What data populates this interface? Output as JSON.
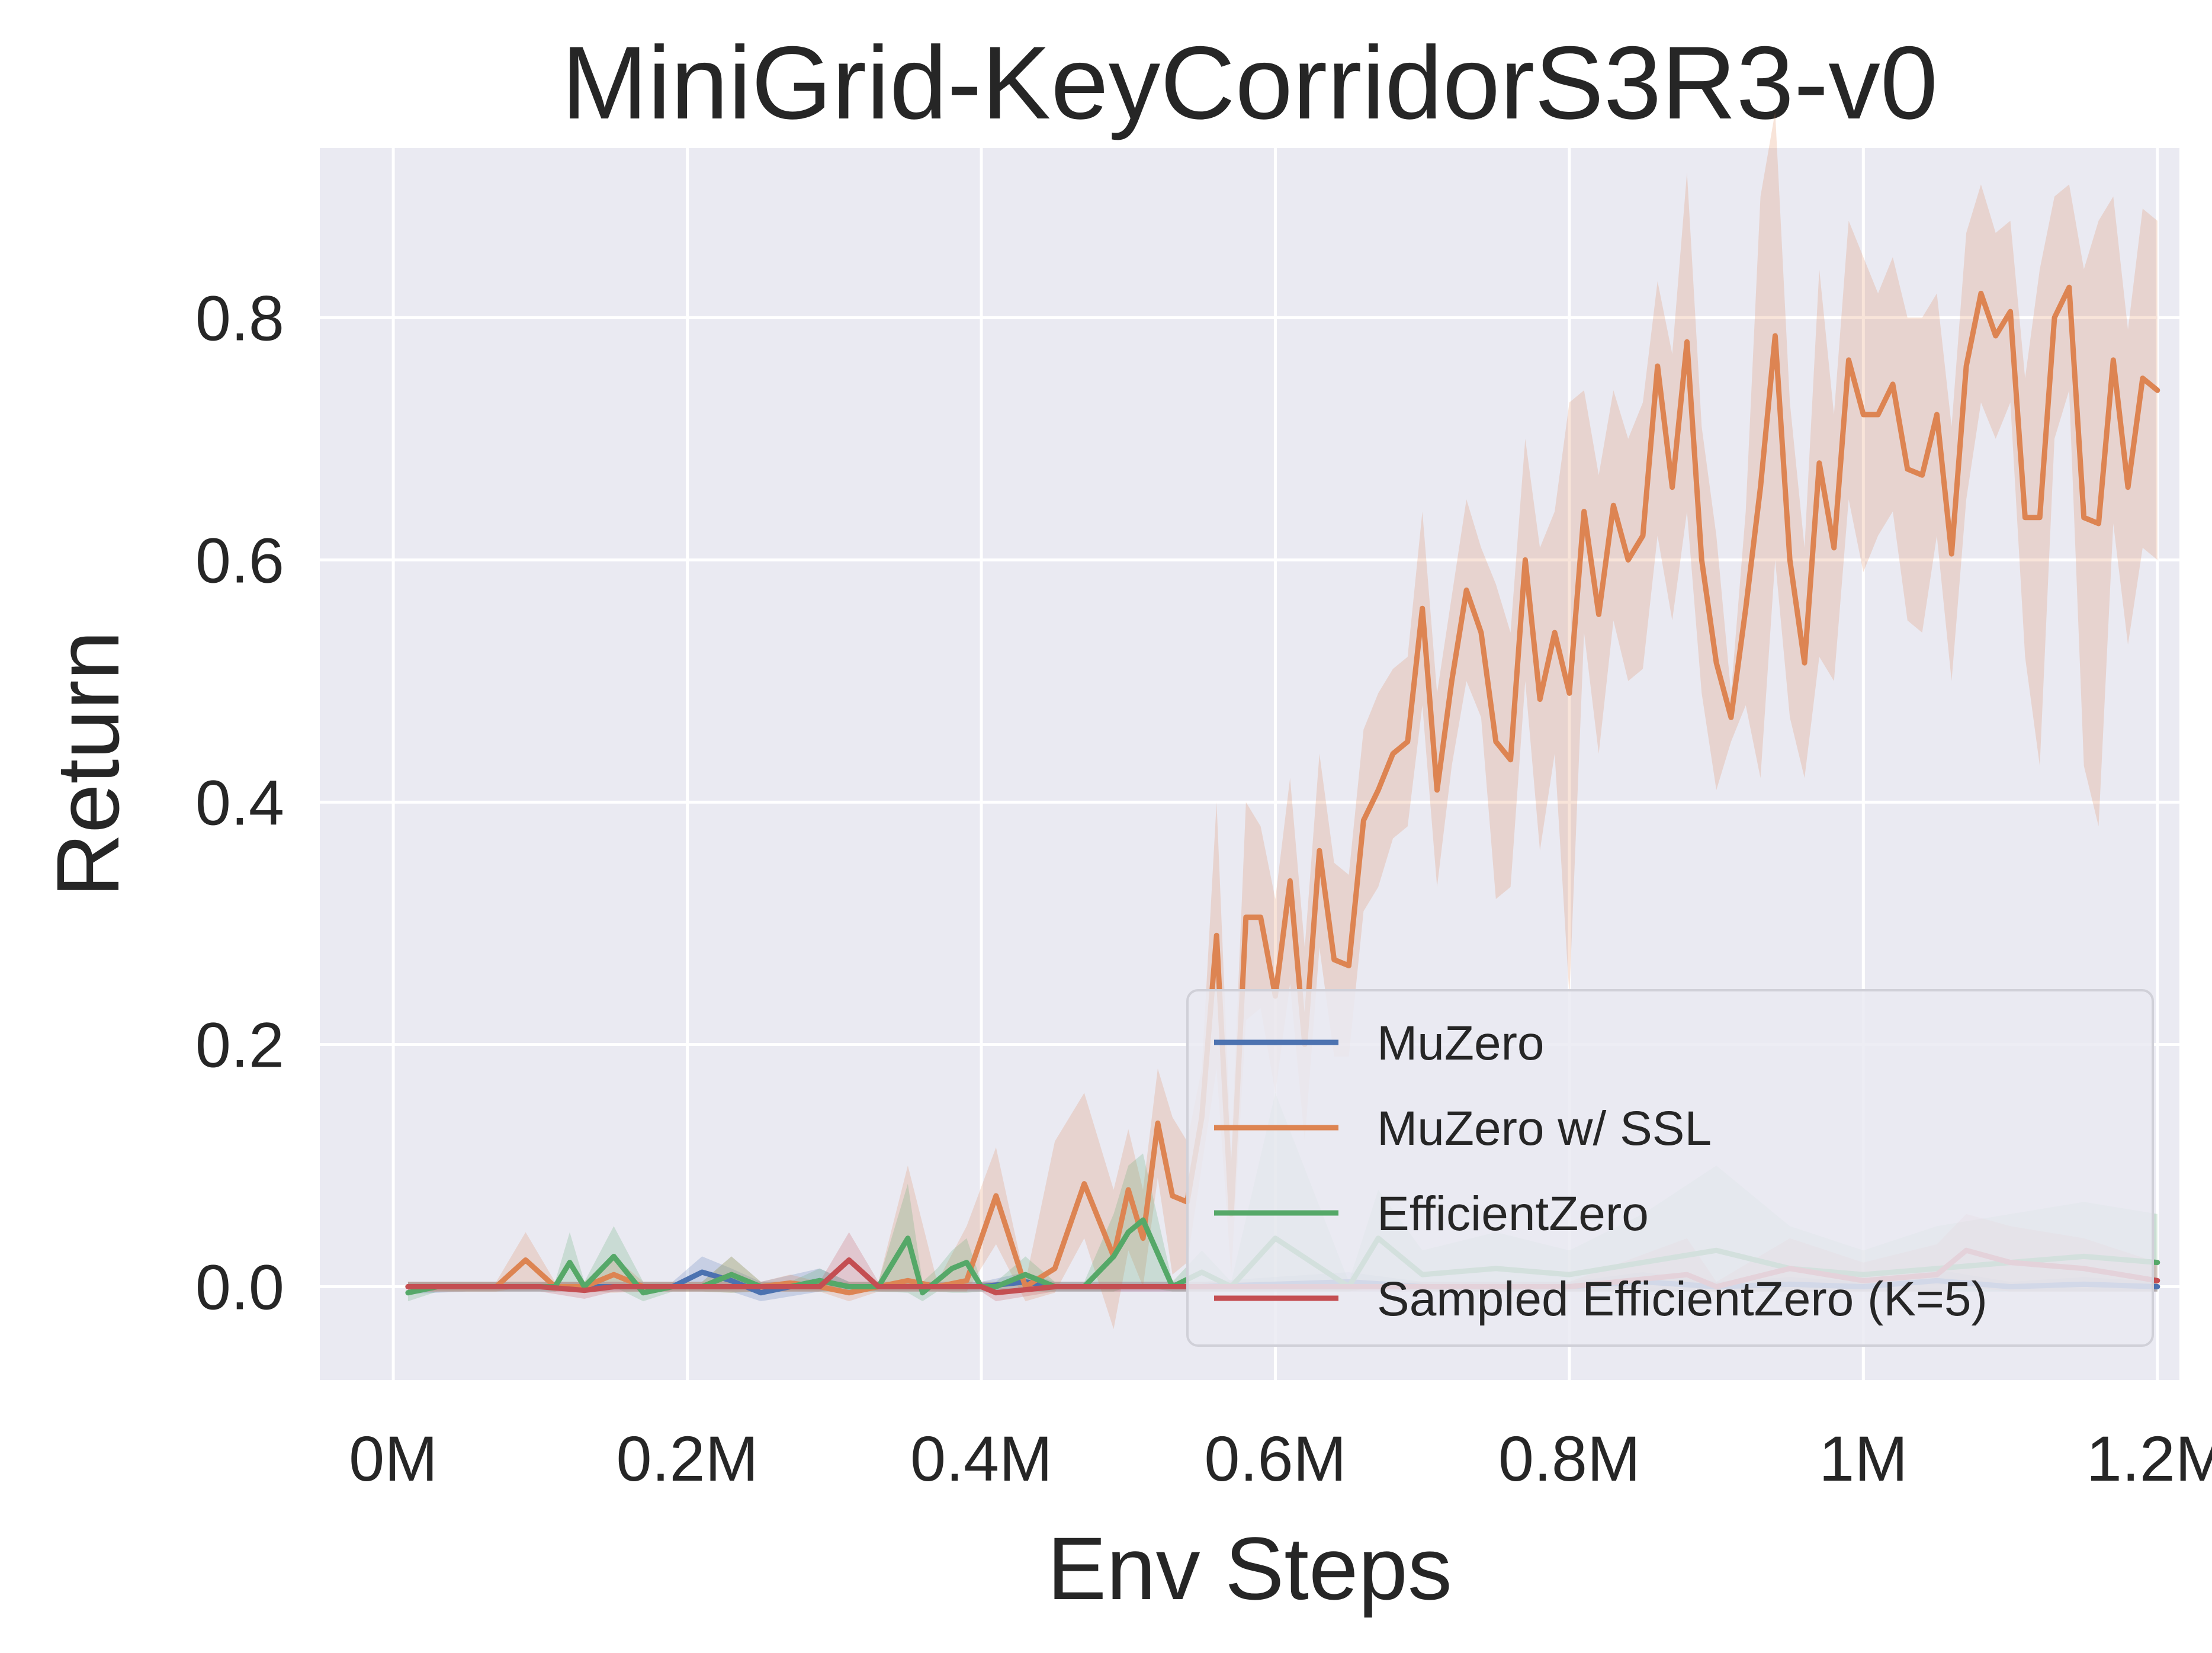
{
  "chart_data": {
    "type": "line",
    "title": "MiniGrid-KeyCorridorS3R3-v0",
    "xlabel": "Env Steps",
    "ylabel": "Return",
    "xlim": [
      -0.05,
      1.215
    ],
    "ylim": [
      -0.077,
      0.94
    ],
    "xticks": [
      0,
      0.2,
      0.4,
      0.6,
      0.8,
      1.0,
      1.2
    ],
    "xtick_labels": [
      "0M",
      "0.2M",
      "0.4M",
      "0.6M",
      "0.8M",
      "1M",
      "1.2M"
    ],
    "yticks": [
      0.0,
      0.2,
      0.4,
      0.6,
      0.8
    ],
    "ytick_labels": [
      "0.0",
      "0.2",
      "0.4",
      "0.6",
      "0.8"
    ],
    "grid": true,
    "legend_position": "lower-right",
    "background": "#eaeaf2",
    "series": [
      {
        "name": "MuZero",
        "color": "#4c72b0",
        "x": [
          0.01,
          0.05,
          0.1,
          0.15,
          0.19,
          0.21,
          0.23,
          0.25,
          0.29,
          0.31,
          0.35,
          0.4,
          0.43,
          0.45,
          0.5,
          0.55,
          0.65,
          0.7,
          0.75,
          0.8,
          0.85,
          0.9,
          0.95,
          1.0,
          1.05,
          1.1,
          1.15,
          1.2
        ],
        "y": [
          0,
          0,
          0,
          0,
          0,
          0.012,
          0.005,
          -0.005,
          0.005,
          0,
          0,
          0,
          0.004,
          0,
          0,
          0,
          0.004,
          0,
          0,
          0,
          0.004,
          0,
          0.002,
          0,
          0.005,
          0,
          0.002,
          0
        ],
        "lower": [
          -0.006,
          -0.004,
          -0.004,
          -0.004,
          -0.004,
          -0.004,
          -0.004,
          -0.012,
          -0.004,
          -0.004,
          -0.004,
          -0.004,
          -0.004,
          -0.004,
          -0.004,
          -0.004,
          -0.004,
          -0.004,
          -0.004,
          -0.004,
          -0.004,
          -0.004,
          -0.004,
          -0.004,
          -0.004,
          -0.004,
          -0.004,
          -0.004
        ],
        "upper": [
          0.004,
          0.004,
          0.004,
          0.004,
          0.004,
          0.025,
          0.015,
          0.004,
          0.015,
          0.004,
          0.004,
          0.004,
          0.012,
          0.004,
          0.004,
          0.004,
          0.012,
          0.004,
          0.004,
          0.004,
          0.012,
          0.004,
          0.008,
          0.004,
          0.014,
          0.004,
          0.008,
          0.004
        ]
      },
      {
        "name": "MuZero w/ SSL",
        "color": "#dd8452",
        "x": [
          0.01,
          0.03,
          0.05,
          0.07,
          0.09,
          0.11,
          0.13,
          0.15,
          0.17,
          0.19,
          0.21,
          0.23,
          0.25,
          0.27,
          0.29,
          0.31,
          0.33,
          0.35,
          0.37,
          0.39,
          0.41,
          0.43,
          0.45,
          0.47,
          0.49,
          0.5,
          0.51,
          0.52,
          0.53,
          0.54,
          0.55,
          0.56,
          0.57,
          0.58,
          0.59,
          0.6,
          0.61,
          0.62,
          0.63,
          0.64,
          0.65,
          0.66,
          0.67,
          0.68,
          0.69,
          0.7,
          0.71,
          0.72,
          0.73,
          0.74,
          0.75,
          0.76,
          0.77,
          0.78,
          0.79,
          0.8,
          0.81,
          0.82,
          0.83,
          0.84,
          0.85,
          0.86,
          0.87,
          0.88,
          0.89,
          0.9,
          0.91,
          0.92,
          0.93,
          0.94,
          0.95,
          0.96,
          0.97,
          0.98,
          0.99,
          1.0,
          1.01,
          1.02,
          1.03,
          1.04,
          1.05,
          1.06,
          1.07,
          1.08,
          1.09,
          1.1,
          1.11,
          1.12,
          1.13,
          1.14,
          1.15,
          1.16,
          1.17,
          1.18,
          1.19,
          1.2
        ],
        "y": [
          0,
          0,
          0,
          0,
          0.022,
          0,
          0,
          0.01,
          0,
          0,
          0,
          0.01,
          0,
          0.003,
          0,
          -0.005,
          0,
          0.005,
          0,
          0.005,
          0.075,
          0,
          0.015,
          0.085,
          0.025,
          0.08,
          0.04,
          0.135,
          0.075,
          0.07,
          0.14,
          0.29,
          0.06,
          0.305,
          0.305,
          0.24,
          0.335,
          0.2,
          0.36,
          0.27,
          0.265,
          0.385,
          0.41,
          0.44,
          0.45,
          0.56,
          0.41,
          0.5,
          0.575,
          0.54,
          0.45,
          0.435,
          0.6,
          0.485,
          0.54,
          0.49,
          0.64,
          0.555,
          0.645,
          0.6,
          0.62,
          0.76,
          0.66,
          0.78,
          0.6,
          0.515,
          0.47,
          0.56,
          0.66,
          0.785,
          0.6,
          0.515,
          0.68,
          0.61,
          0.765,
          0.72,
          0.72,
          0.745,
          0.675,
          0.67,
          0.72,
          0.605,
          0.76,
          0.82,
          0.785,
          0.805,
          0.635,
          0.635,
          0.8,
          0.825,
          0.635,
          0.63,
          0.765,
          0.66,
          0.75,
          0.74
        ],
        "lower": [
          -0.004,
          -0.004,
          -0.004,
          -0.004,
          0.0,
          -0.004,
          -0.004,
          -0.005,
          -0.004,
          -0.004,
          -0.004,
          -0.005,
          -0.004,
          -0.004,
          -0.004,
          -0.012,
          -0.004,
          -0.004,
          -0.004,
          -0.004,
          0.035,
          -0.012,
          -0.005,
          0.04,
          -0.035,
          0.03,
          0.0,
          0.09,
          0.01,
          0.02,
          0.1,
          0.18,
          0.01,
          0.22,
          0.23,
          0.16,
          0.25,
          0.12,
          0.28,
          0.19,
          0.19,
          0.31,
          0.33,
          0.37,
          0.38,
          0.48,
          0.33,
          0.43,
          0.5,
          0.47,
          0.32,
          0.33,
          0.5,
          0.36,
          0.44,
          0.24,
          0.54,
          0.44,
          0.55,
          0.5,
          0.51,
          0.62,
          0.55,
          0.64,
          0.49,
          0.41,
          0.45,
          0.48,
          0.42,
          0.6,
          0.47,
          0.42,
          0.52,
          0.5,
          0.65,
          0.59,
          0.62,
          0.64,
          0.55,
          0.54,
          0.62,
          0.5,
          0.65,
          0.73,
          0.7,
          0.73,
          0.52,
          0.43,
          0.7,
          0.74,
          0.43,
          0.38,
          0.63,
          0.53,
          0.61,
          0.6
        ],
        "upper": [
          0.004,
          0.004,
          0.004,
          0.004,
          0.045,
          0.004,
          0.004,
          0.025,
          0.004,
          0.004,
          0.004,
          0.025,
          0.004,
          0.01,
          0.004,
          0.004,
          0.004,
          0.1,
          0.004,
          0.05,
          0.115,
          0.004,
          0.12,
          0.16,
          0.08,
          0.13,
          0.08,
          0.18,
          0.14,
          0.12,
          0.18,
          0.4,
          0.11,
          0.4,
          0.38,
          0.32,
          0.42,
          0.28,
          0.44,
          0.35,
          0.34,
          0.46,
          0.49,
          0.51,
          0.52,
          0.64,
          0.49,
          0.57,
          0.65,
          0.61,
          0.58,
          0.54,
          0.7,
          0.61,
          0.64,
          0.73,
          0.74,
          0.67,
          0.74,
          0.7,
          0.73,
          0.83,
          0.77,
          0.92,
          0.71,
          0.62,
          0.49,
          0.64,
          0.9,
          0.97,
          0.73,
          0.61,
          0.84,
          0.72,
          0.88,
          0.85,
          0.82,
          0.85,
          0.8,
          0.8,
          0.82,
          0.71,
          0.87,
          0.91,
          0.87,
          0.88,
          0.75,
          0.84,
          0.9,
          0.91,
          0.84,
          0.88,
          0.9,
          0.79,
          0.89,
          0.88
        ]
      },
      {
        "name": "EfficientZero",
        "color": "#55a868",
        "x": [
          0.01,
          0.03,
          0.05,
          0.07,
          0.09,
          0.11,
          0.12,
          0.13,
          0.15,
          0.17,
          0.19,
          0.21,
          0.23,
          0.25,
          0.27,
          0.29,
          0.31,
          0.33,
          0.35,
          0.36,
          0.37,
          0.38,
          0.39,
          0.4,
          0.41,
          0.43,
          0.45,
          0.47,
          0.49,
          0.5,
          0.51,
          0.53,
          0.55,
          0.57,
          0.6,
          0.65,
          0.67,
          0.7,
          0.75,
          0.8,
          0.85,
          0.9,
          0.95,
          1.0,
          1.05,
          1.1,
          1.15,
          1.2
        ],
        "y": [
          -0.005,
          0,
          0,
          0,
          0,
          0,
          0.02,
          0,
          0.025,
          -0.005,
          0,
          0,
          0.01,
          0,
          0,
          0.005,
          0,
          0,
          0.04,
          -0.005,
          0.005,
          0.015,
          0.02,
          0,
          0,
          0.01,
          0,
          0,
          0.025,
          0.045,
          0.055,
          0,
          0.012,
          0,
          0.04,
          0,
          0.04,
          0.01,
          0.015,
          0.01,
          0.02,
          0.03,
          0.015,
          0.01,
          0.015,
          0.02,
          0.025,
          0.02
        ],
        "lower": [
          -0.012,
          -0.004,
          -0.004,
          -0.004,
          -0.004,
          -0.004,
          0.0,
          -0.004,
          0.0,
          -0.012,
          -0.004,
          -0.004,
          -0.005,
          -0.004,
          -0.004,
          -0.004,
          -0.004,
          -0.004,
          -0.005,
          -0.012,
          -0.004,
          -0.005,
          -0.005,
          -0.004,
          -0.004,
          -0.004,
          -0.004,
          -0.004,
          -0.004,
          0.0,
          0.0,
          -0.004,
          -0.004,
          -0.004,
          -0.004,
          -0.004,
          0.0,
          -0.004,
          -0.004,
          -0.004,
          -0.004,
          -0.004,
          -0.004,
          -0.004,
          -0.004,
          -0.004,
          -0.004,
          -0.004
        ],
        "upper": [
          0.004,
          0.004,
          0.004,
          0.004,
          0.004,
          0.004,
          0.045,
          0.004,
          0.05,
          0.004,
          0.004,
          0.004,
          0.025,
          0.004,
          0.004,
          0.015,
          0.004,
          0.004,
          0.085,
          0.004,
          0.015,
          0.03,
          0.04,
          0.004,
          0.004,
          0.025,
          0.004,
          0.004,
          0.06,
          0.1,
          0.11,
          0.004,
          0.03,
          0.004,
          0.16,
          0.004,
          0.08,
          0.03,
          0.045,
          0.03,
          0.06,
          0.1,
          0.05,
          0.03,
          0.05,
          0.06,
          0.07,
          0.06
        ]
      },
      {
        "name": "Sampled EfficientZero (K=5)",
        "color": "#c44e52",
        "x": [
          0.01,
          0.05,
          0.1,
          0.13,
          0.15,
          0.2,
          0.25,
          0.29,
          0.31,
          0.33,
          0.35,
          0.4,
          0.41,
          0.45,
          0.5,
          0.55,
          0.6,
          0.7,
          0.8,
          0.88,
          0.9,
          0.95,
          1.0,
          1.05,
          1.07,
          1.1,
          1.15,
          1.2
        ],
        "y": [
          0,
          0,
          0,
          -0.003,
          0,
          0,
          0,
          0,
          0.022,
          0,
          0,
          0,
          -0.005,
          0,
          0,
          0,
          0,
          0,
          0,
          0.01,
          0,
          0.015,
          0.005,
          0.01,
          0.03,
          0.02,
          0.015,
          0.005
        ],
        "lower": [
          -0.004,
          -0.004,
          -0.004,
          -0.01,
          -0.004,
          -0.004,
          -0.004,
          -0.004,
          0.0,
          -0.004,
          -0.004,
          -0.004,
          -0.012,
          -0.004,
          -0.004,
          -0.004,
          -0.004,
          -0.004,
          -0.004,
          -0.004,
          -0.004,
          -0.004,
          -0.004,
          -0.004,
          0.0,
          -0.004,
          -0.004,
          -0.004
        ],
        "upper": [
          0.004,
          0.004,
          0.004,
          0.004,
          0.004,
          0.004,
          0.004,
          0.004,
          0.045,
          0.004,
          0.004,
          0.004,
          0.004,
          0.004,
          0.004,
          0.004,
          0.004,
          0.004,
          0.004,
          0.04,
          0.004,
          0.04,
          0.02,
          0.035,
          0.06,
          0.05,
          0.04,
          0.02
        ]
      }
    ]
  }
}
